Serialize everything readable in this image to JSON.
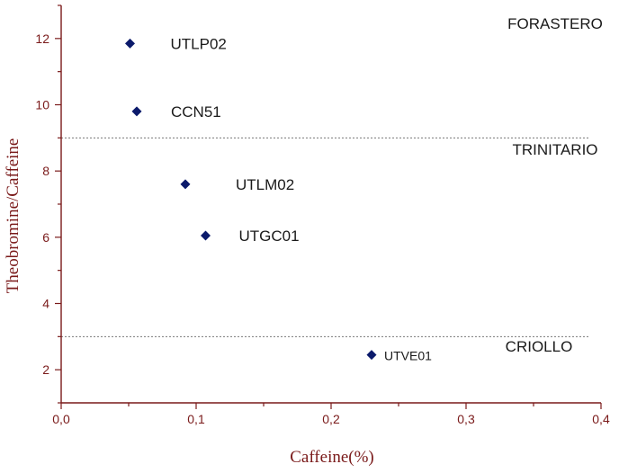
{
  "chart_data": {
    "type": "scatter",
    "xlabel": "Caffeine(%)",
    "ylabel": "Theobromine/Caffeine",
    "xlim": [
      0.0,
      0.4
    ],
    "ylim": [
      1.0,
      13.0
    ],
    "x_ticks": [
      "0,0",
      "0,1",
      "0,2",
      "0,3",
      "0,4"
    ],
    "y_ticks": [
      "2",
      "4",
      "6",
      "8",
      "10",
      "12"
    ],
    "marker_color": "#0b1a6b",
    "axis_color": "#7a1a1a",
    "points": [
      {
        "label": "UTLP02",
        "x": 0.051,
        "y": 11.85
      },
      {
        "label": "CCN51",
        "x": 0.056,
        "y": 9.8
      },
      {
        "label": "UTLM02",
        "x": 0.092,
        "y": 7.6
      },
      {
        "label": "UTGC01",
        "x": 0.107,
        "y": 6.05
      },
      {
        "label": "UTVE01",
        "x": 0.23,
        "y": 2.45
      }
    ],
    "reference_lines": [
      {
        "y": 9.0
      },
      {
        "y": 3.0
      }
    ],
    "region_labels": [
      {
        "text": "FORASTERO",
        "x": 0.366,
        "y": 12.3
      },
      {
        "text": "TRINITARIO",
        "x": 0.366,
        "y": 8.5
      },
      {
        "text": "CRIOLLO",
        "x": 0.354,
        "y": 2.55
      }
    ]
  }
}
